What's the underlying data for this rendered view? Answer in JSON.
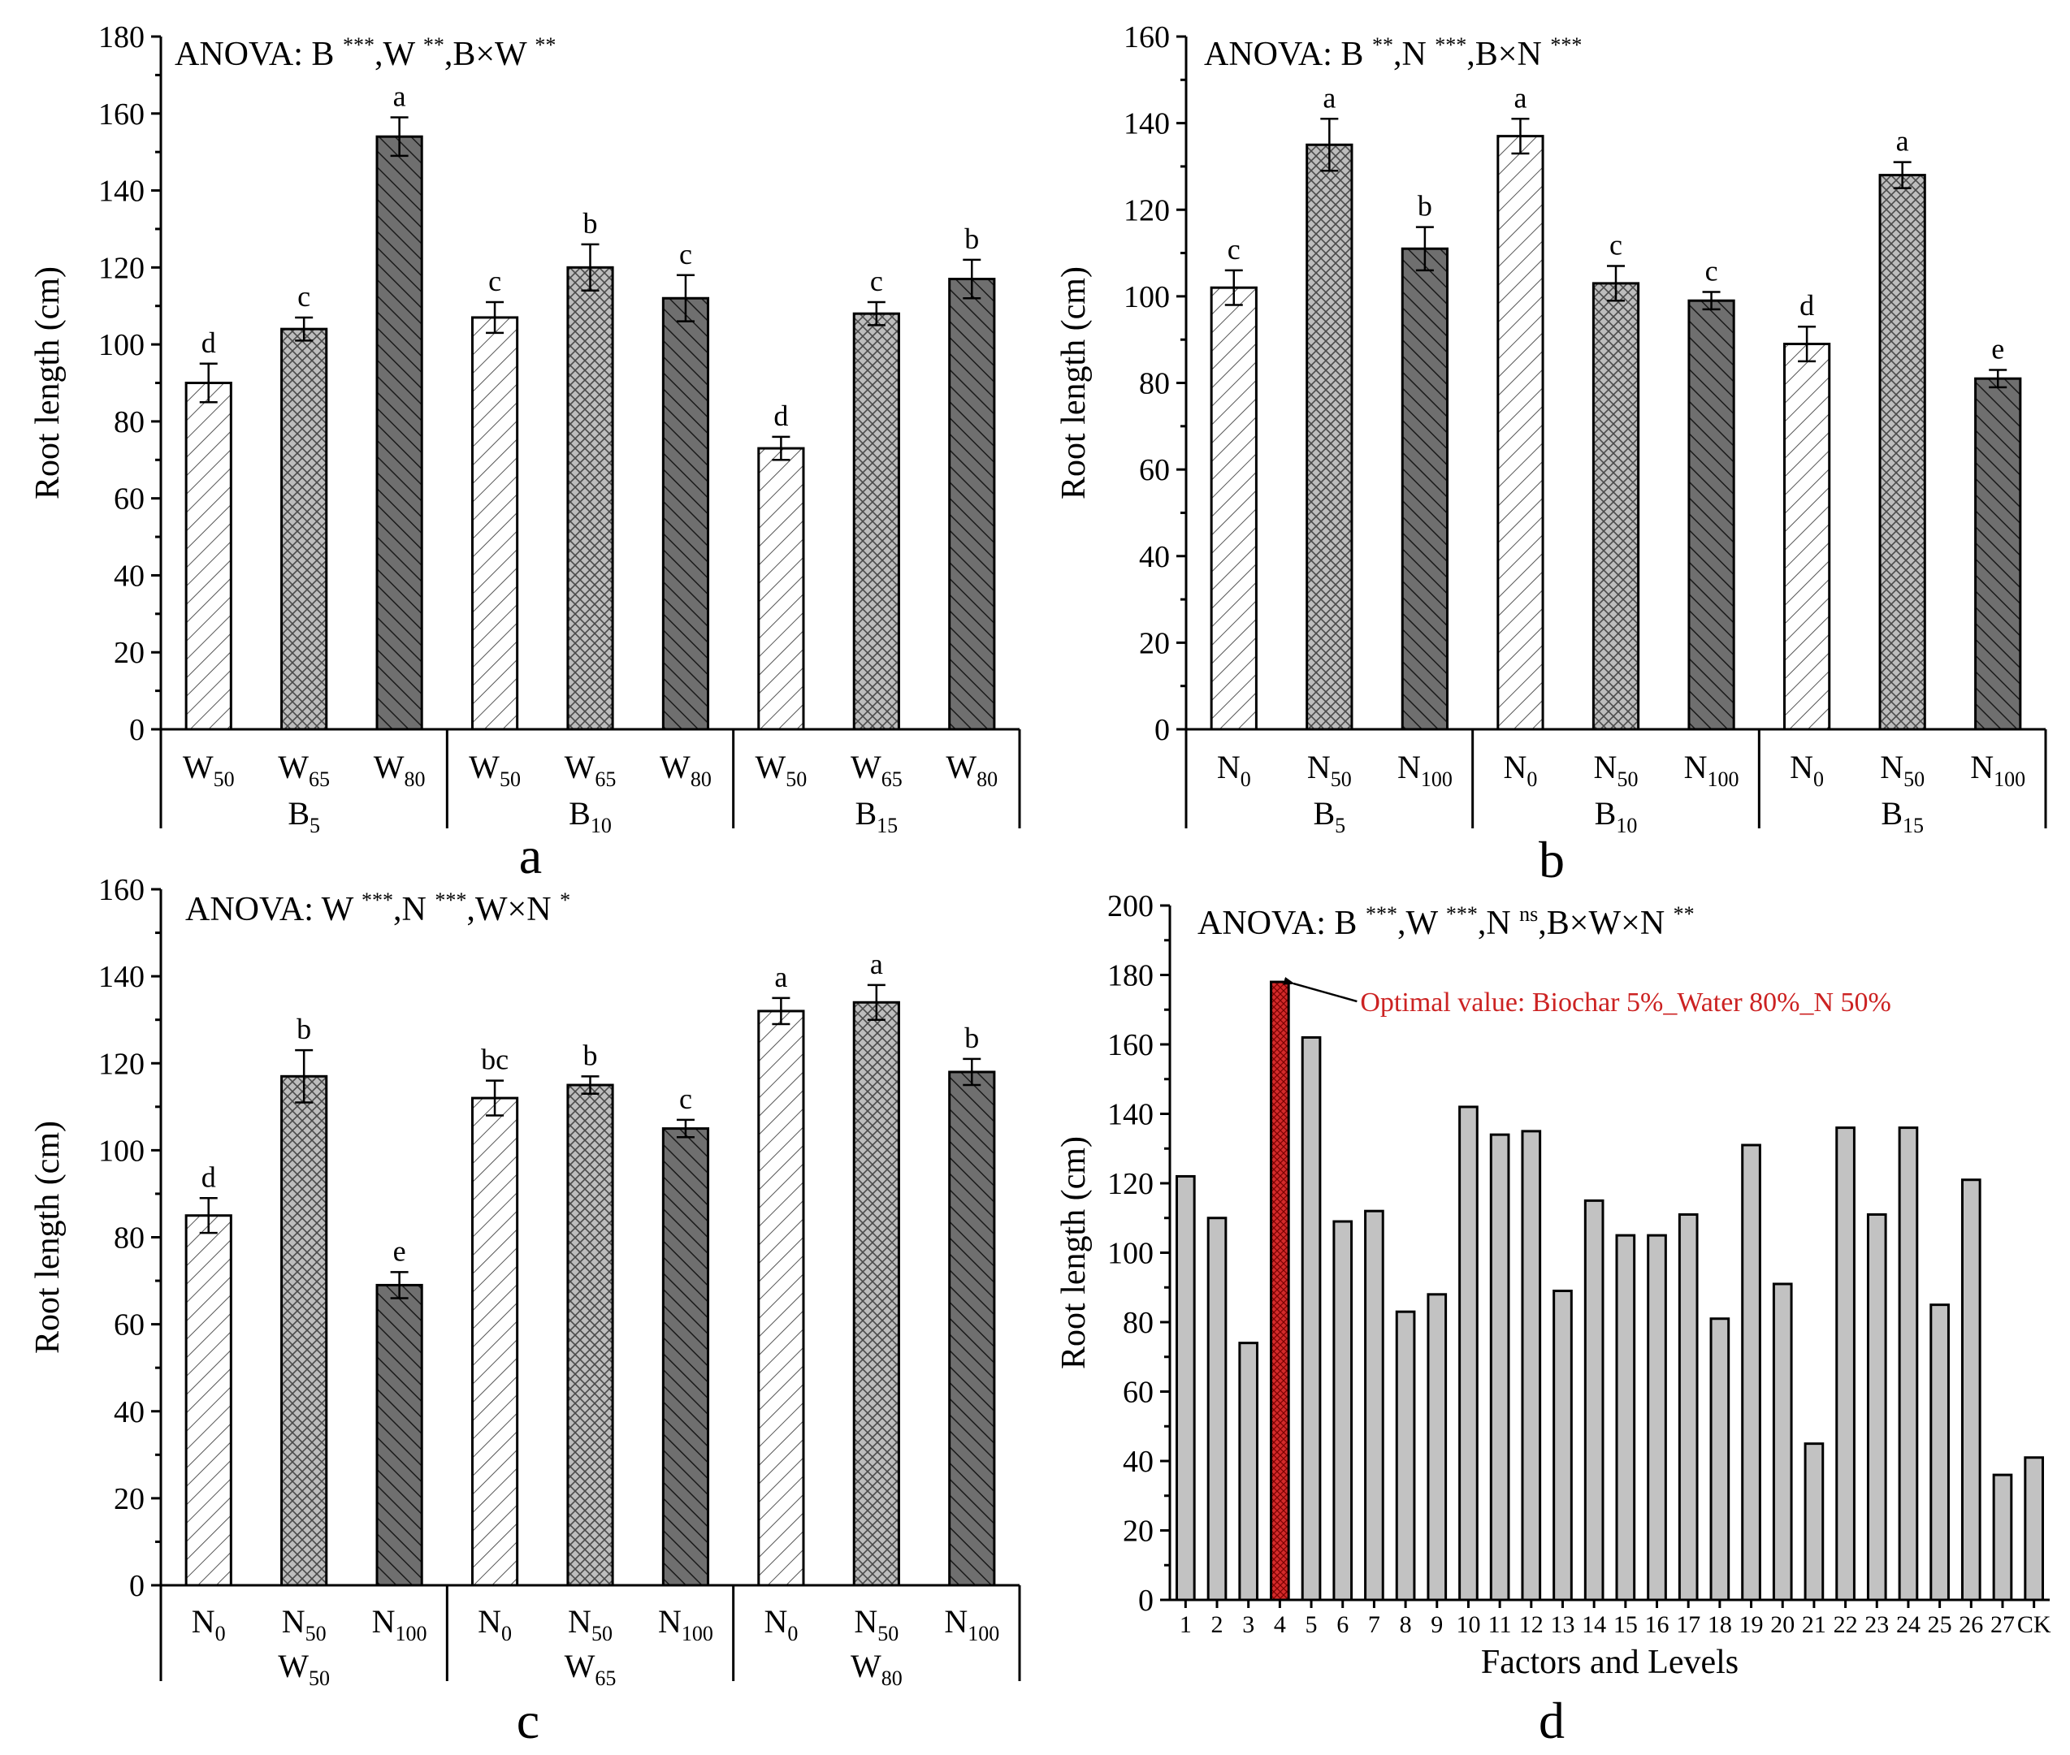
{
  "chart_data": [
    {
      "id": "a",
      "type": "bar",
      "panel_label": "a",
      "anova": [
        {
          "text": "ANOVA: B ",
          "sup": "***"
        },
        {
          "text": ",W ",
          "sup": "**"
        },
        {
          "text": ",B×W ",
          "sup": "**"
        }
      ],
      "ylabel": "Root length (cm)",
      "ylim": [
        0,
        180
      ],
      "yticks": [
        0,
        20,
        40,
        60,
        80,
        100,
        120,
        140,
        160,
        180
      ],
      "groups": [
        {
          "main": "B",
          "sub": "5"
        },
        {
          "main": "B",
          "sub": "10"
        },
        {
          "main": "B",
          "sub": "15"
        }
      ],
      "bars": [
        {
          "main": "W",
          "sub": "50",
          "value": 90,
          "err": 5,
          "letter": "d",
          "style": "light"
        },
        {
          "main": "W",
          "sub": "65",
          "value": 104,
          "err": 3,
          "letter": "c",
          "style": "medium"
        },
        {
          "main": "W",
          "sub": "80",
          "value": 154,
          "err": 5,
          "letter": "a",
          "style": "dark"
        },
        {
          "main": "W",
          "sub": "50",
          "value": 107,
          "err": 4,
          "letter": "c",
          "style": "light"
        },
        {
          "main": "W",
          "sub": "65",
          "value": 120,
          "err": 6,
          "letter": "b",
          "style": "medium"
        },
        {
          "main": "W",
          "sub": "80",
          "value": 112,
          "err": 6,
          "letter": "c",
          "style": "dark"
        },
        {
          "main": "W",
          "sub": "50",
          "value": 73,
          "err": 3,
          "letter": "d",
          "style": "light"
        },
        {
          "main": "W",
          "sub": "65",
          "value": 108,
          "err": 3,
          "letter": "c",
          "style": "medium"
        },
        {
          "main": "W",
          "sub": "80",
          "value": 117,
          "err": 5,
          "letter": "b",
          "style": "dark"
        }
      ]
    },
    {
      "id": "b",
      "type": "bar",
      "panel_label": "b",
      "anova": [
        {
          "text": "ANOVA: B ",
          "sup": "**"
        },
        {
          "text": ",N ",
          "sup": "***"
        },
        {
          "text": ",B×N ",
          "sup": "***"
        }
      ],
      "ylabel": "Root length (cm)",
      "ylim": [
        0,
        160
      ],
      "yticks": [
        0,
        20,
        40,
        60,
        80,
        100,
        120,
        140,
        160
      ],
      "groups": [
        {
          "main": "B",
          "sub": "5"
        },
        {
          "main": "B",
          "sub": "10"
        },
        {
          "main": "B",
          "sub": "15"
        }
      ],
      "bars": [
        {
          "main": "N",
          "sub": "0",
          "value": 102,
          "err": 4,
          "letter": "c",
          "style": "light"
        },
        {
          "main": "N",
          "sub": "50",
          "value": 135,
          "err": 6,
          "letter": "a",
          "style": "medium"
        },
        {
          "main": "N",
          "sub": "100",
          "value": 111,
          "err": 5,
          "letter": "b",
          "style": "dark"
        },
        {
          "main": "N",
          "sub": "0",
          "value": 137,
          "err": 4,
          "letter": "a",
          "style": "light"
        },
        {
          "main": "N",
          "sub": "50",
          "value": 103,
          "err": 4,
          "letter": "c",
          "style": "medium"
        },
        {
          "main": "N",
          "sub": "100",
          "value": 99,
          "err": 2,
          "letter": "c",
          "style": "dark"
        },
        {
          "main": "N",
          "sub": "0",
          "value": 89,
          "err": 4,
          "letter": "d",
          "style": "light"
        },
        {
          "main": "N",
          "sub": "50",
          "value": 128,
          "err": 3,
          "letter": "a",
          "style": "medium"
        },
        {
          "main": "N",
          "sub": "100",
          "value": 81,
          "err": 2,
          "letter": "e",
          "style": "dark"
        }
      ]
    },
    {
      "id": "c",
      "type": "bar",
      "panel_label": "c",
      "anova": [
        {
          "text": "ANOVA: W ",
          "sup": "***"
        },
        {
          "text": ",N ",
          "sup": "***"
        },
        {
          "text": ",W×N ",
          "sup": "*"
        }
      ],
      "ylabel": "Root length (cm)",
      "ylim": [
        0,
        160
      ],
      "yticks": [
        0,
        20,
        40,
        60,
        80,
        100,
        120,
        140,
        160
      ],
      "groups": [
        {
          "main": "W",
          "sub": "50"
        },
        {
          "main": "W",
          "sub": "65"
        },
        {
          "main": "W",
          "sub": "80"
        }
      ],
      "bars": [
        {
          "main": "N",
          "sub": "0",
          "value": 85,
          "err": 4,
          "letter": "d",
          "style": "light"
        },
        {
          "main": "N",
          "sub": "50",
          "value": 117,
          "err": 6,
          "letter": "b",
          "style": "medium"
        },
        {
          "main": "N",
          "sub": "100",
          "value": 69,
          "err": 3,
          "letter": "e",
          "style": "dark"
        },
        {
          "main": "N",
          "sub": "0",
          "value": 112,
          "err": 4,
          "letter": "bc",
          "style": "light"
        },
        {
          "main": "N",
          "sub": "50",
          "value": 115,
          "err": 2,
          "letter": "b",
          "style": "medium"
        },
        {
          "main": "N",
          "sub": "100",
          "value": 105,
          "err": 2,
          "letter": "c",
          "style": "dark"
        },
        {
          "main": "N",
          "sub": "0",
          "value": 132,
          "err": 3,
          "letter": "a",
          "style": "light"
        },
        {
          "main": "N",
          "sub": "50",
          "value": 134,
          "err": 4,
          "letter": "a",
          "style": "medium"
        },
        {
          "main": "N",
          "sub": "100",
          "value": 118,
          "err": 3,
          "letter": "b",
          "style": "dark"
        }
      ]
    },
    {
      "id": "d",
      "type": "bar",
      "panel_label": "d",
      "anova": [
        {
          "text": "ANOVA: B ",
          "sup": "***"
        },
        {
          "text": ",W ",
          "sup": "***"
        },
        {
          "text": ",N ",
          "sup": "ns"
        },
        {
          "text": ",B×W×N ",
          "sup": "**"
        }
      ],
      "ylabel": "Root length (cm)",
      "xlabel": "Factors and Levels",
      "ylim": [
        0,
        200
      ],
      "yticks": [
        0,
        20,
        40,
        60,
        80,
        100,
        120,
        140,
        160,
        180,
        200
      ],
      "categories": [
        "1",
        "2",
        "3",
        "4",
        "5",
        "6",
        "7",
        "8",
        "9",
        "10",
        "11",
        "12",
        "13",
        "14",
        "15",
        "16",
        "17",
        "18",
        "19",
        "20",
        "21",
        "22",
        "23",
        "24",
        "25",
        "26",
        "27",
        "CK"
      ],
      "values": [
        122,
        110,
        74,
        178,
        162,
        109,
        112,
        83,
        88,
        142,
        134,
        135,
        89,
        115,
        105,
        105,
        111,
        81,
        131,
        91,
        45,
        136,
        111,
        136,
        85,
        121,
        36,
        41
      ],
      "highlight_index": 3,
      "highlight_color": "#d42a2a",
      "bar_color": "#c2c2c2",
      "annotation": {
        "text": "Optimal value: Biochar 5%_Water 80%_N 50%",
        "color": "#cc2222"
      }
    }
  ]
}
